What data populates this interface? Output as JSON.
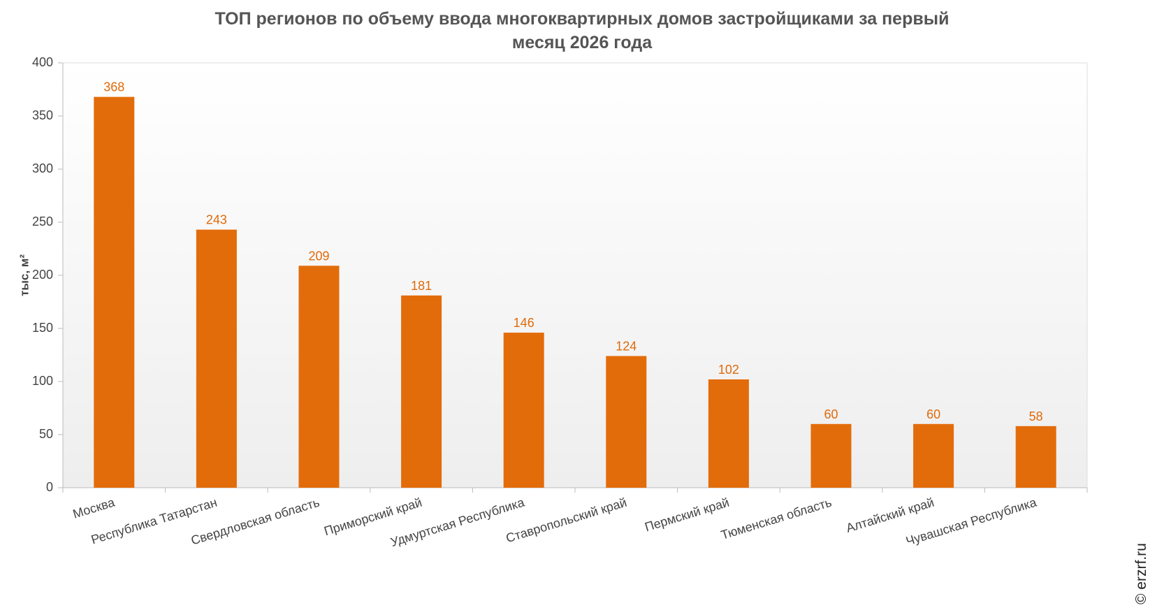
{
  "title_line1": "ТОП регионов по объему ввода многоквартирных домов застройщиками за первый",
  "title_line2": "месяц 2026 года",
  "copyright": "© erzrf.ru",
  "colors": {
    "bar": "#e36c0a",
    "data_label": "#e06a0a",
    "plot_bg_top": "#ffffff",
    "plot_bg_bottom": "#eeeeee"
  },
  "chart_data": {
    "type": "bar",
    "title": "ТОП регионов по объему ввода многоквартирных домов застройщиками за первый месяц 2026 года",
    "xlabel": "",
    "ylabel": "тыс, м²",
    "ylim": [
      0,
      400
    ],
    "yticks": [
      0,
      50,
      100,
      150,
      200,
      250,
      300,
      350,
      400
    ],
    "grid": false,
    "categories": [
      "Москва",
      "Республика Татарстан",
      "Свердловская область",
      "Приморский край",
      "Удмуртская Республика",
      "Ставропольский край",
      "Пермский край",
      "Тюменская область",
      "Алтайский край",
      "Чувашская Республика"
    ],
    "values": [
      368,
      243,
      209,
      181,
      146,
      124,
      102,
      60,
      60,
      58
    ]
  }
}
